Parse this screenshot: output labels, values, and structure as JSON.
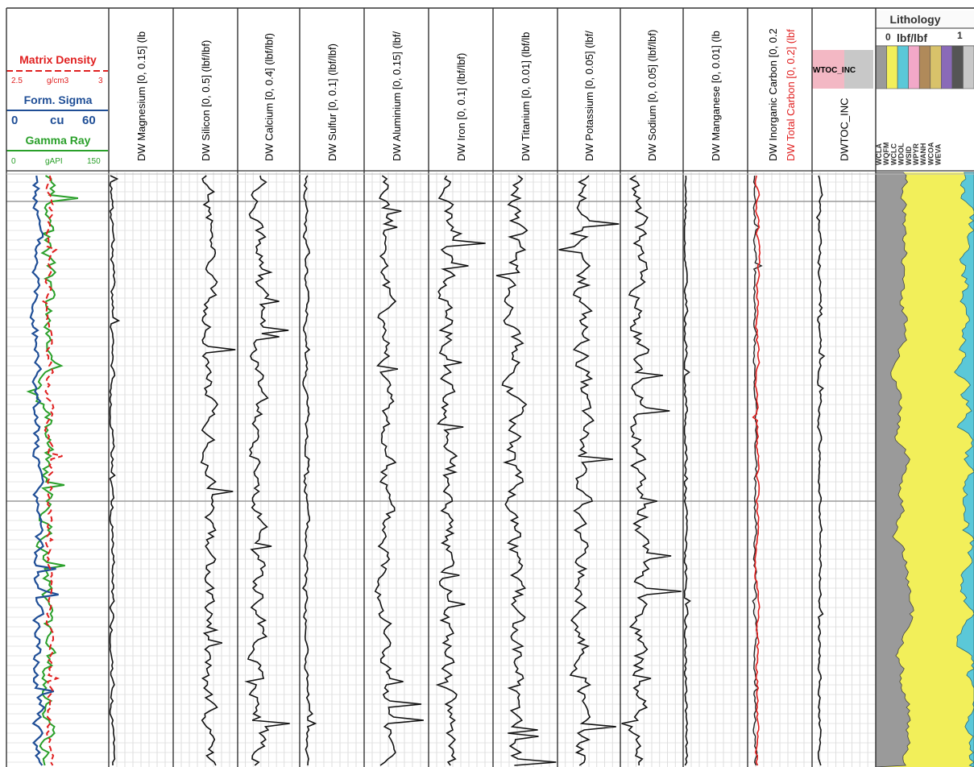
{
  "track1": {
    "curves": [
      {
        "name": "Matrix Density",
        "min": "2.5",
        "unit": "g/cm3",
        "max": "3",
        "color": "#e02020"
      },
      {
        "name": "Form. Sigma",
        "min": "0",
        "unit": "cu",
        "max": "60",
        "color": "#1f4e96"
      },
      {
        "name": "Gamma Ray",
        "min": "0",
        "unit": "gAPI",
        "max": "150",
        "color": "#2aa02a"
      }
    ]
  },
  "tracks": [
    {
      "label": "DW Magnesium [0, 0.15] (lb",
      "color": "#000000"
    },
    {
      "label": "DW Silicon [0, 0.5] (lbf/lbf)",
      "color": "#000000"
    },
    {
      "label": "DW Calcium [0, 0.4] (lbf/lbf)",
      "color": "#000000"
    },
    {
      "label": "DW Sulfur [0, 0.1] (lbf/lbf)",
      "color": "#000000"
    },
    {
      "label": "DW Aluminium [0, 0.15] (lbf/",
      "color": "#000000"
    },
    {
      "label": "DW Iron [0, 0.1] (lbf/lbf)",
      "color": "#000000"
    },
    {
      "label": "DW Titanium [0, 0.01] (lbf/lb",
      "color": "#000000"
    },
    {
      "label": "DW Potassium [0, 0.05] (lbf/",
      "color": "#000000"
    },
    {
      "label": "DW Sodium [0, 0.05] (lbf/lbf)",
      "color": "#000000"
    },
    {
      "label": "DW Manganese [0, 0.01] (lb",
      "color": "#000000"
    },
    {
      "label": "DW Inorganic Carbon [0, 0.2",
      "label2": "DW Total Carbon [0, 0.2] (lbf",
      "color": "#000000",
      "color2": "#e02020"
    },
    {
      "label": "DWTOC_INC",
      "color": "#000000"
    }
  ],
  "wtoc_box_label": "WTOC_INC",
  "lithology": {
    "title": "Lithology",
    "scale_min": "0",
    "scale_unit": "lbf/lbf",
    "scale_max": "1",
    "components": [
      "WCLA",
      "WQFM",
      "WCLC",
      "WDOL",
      "WSID",
      "WPYR",
      "WANH",
      "WCOA",
      "WEVA"
    ],
    "component_colors": [
      "#9a9a9a",
      "#f2ef5a",
      "#5bc8d8",
      "#f2a8c8",
      "#b08a5a",
      "#d8c26a",
      "#8a6ab8",
      "#555555",
      "#c8c8c8"
    ],
    "fill_colors": {
      "clay": "#9a9a9a",
      "quartz": "#f2ef5a",
      "calcite": "#5bc8d8"
    }
  },
  "chart_data": {
    "type": "line",
    "description_axis": "depth (unlabeled)",
    "curves": [
      "Matrix Density",
      "Form. Sigma",
      "Gamma Ray",
      "DW Magnesium",
      "DW Silicon",
      "DW Calcium",
      "DW Sulfur",
      "DW Aluminium",
      "DW Iron",
      "DW Titanium",
      "DW Potassium",
      "DW Sodium",
      "DW Manganese",
      "DW Inorganic Carbon",
      "DW Total Carbon",
      "DWTOC_INC",
      "Lithology"
    ],
    "scales": {
      "Matrix Density": [
        2.5,
        3
      ],
      "Form. Sigma": [
        0,
        60
      ],
      "Gamma Ray": [
        0,
        150
      ],
      "DW Magnesium": [
        0,
        0.15
      ],
      "DW Silicon": [
        0,
        0.5
      ],
      "DW Calcium": [
        0,
        0.4
      ],
      "DW Sulfur": [
        0,
        0.1
      ],
      "DW Aluminium": [
        0,
        0.15
      ],
      "DW Iron": [
        0,
        0.1
      ],
      "DW Titanium": [
        0,
        0.01
      ],
      "DW Potassium": [
        0,
        0.05
      ],
      "DW Sodium": [
        0,
        0.05
      ],
      "DW Manganese": [
        0,
        0.01
      ],
      "DW Inorganic Carbon": [
        0,
        0.2
      ],
      "DW Total Carbon": [
        0,
        0.2
      ],
      "Lithology": [
        0,
        1
      ]
    },
    "grid": true
  }
}
